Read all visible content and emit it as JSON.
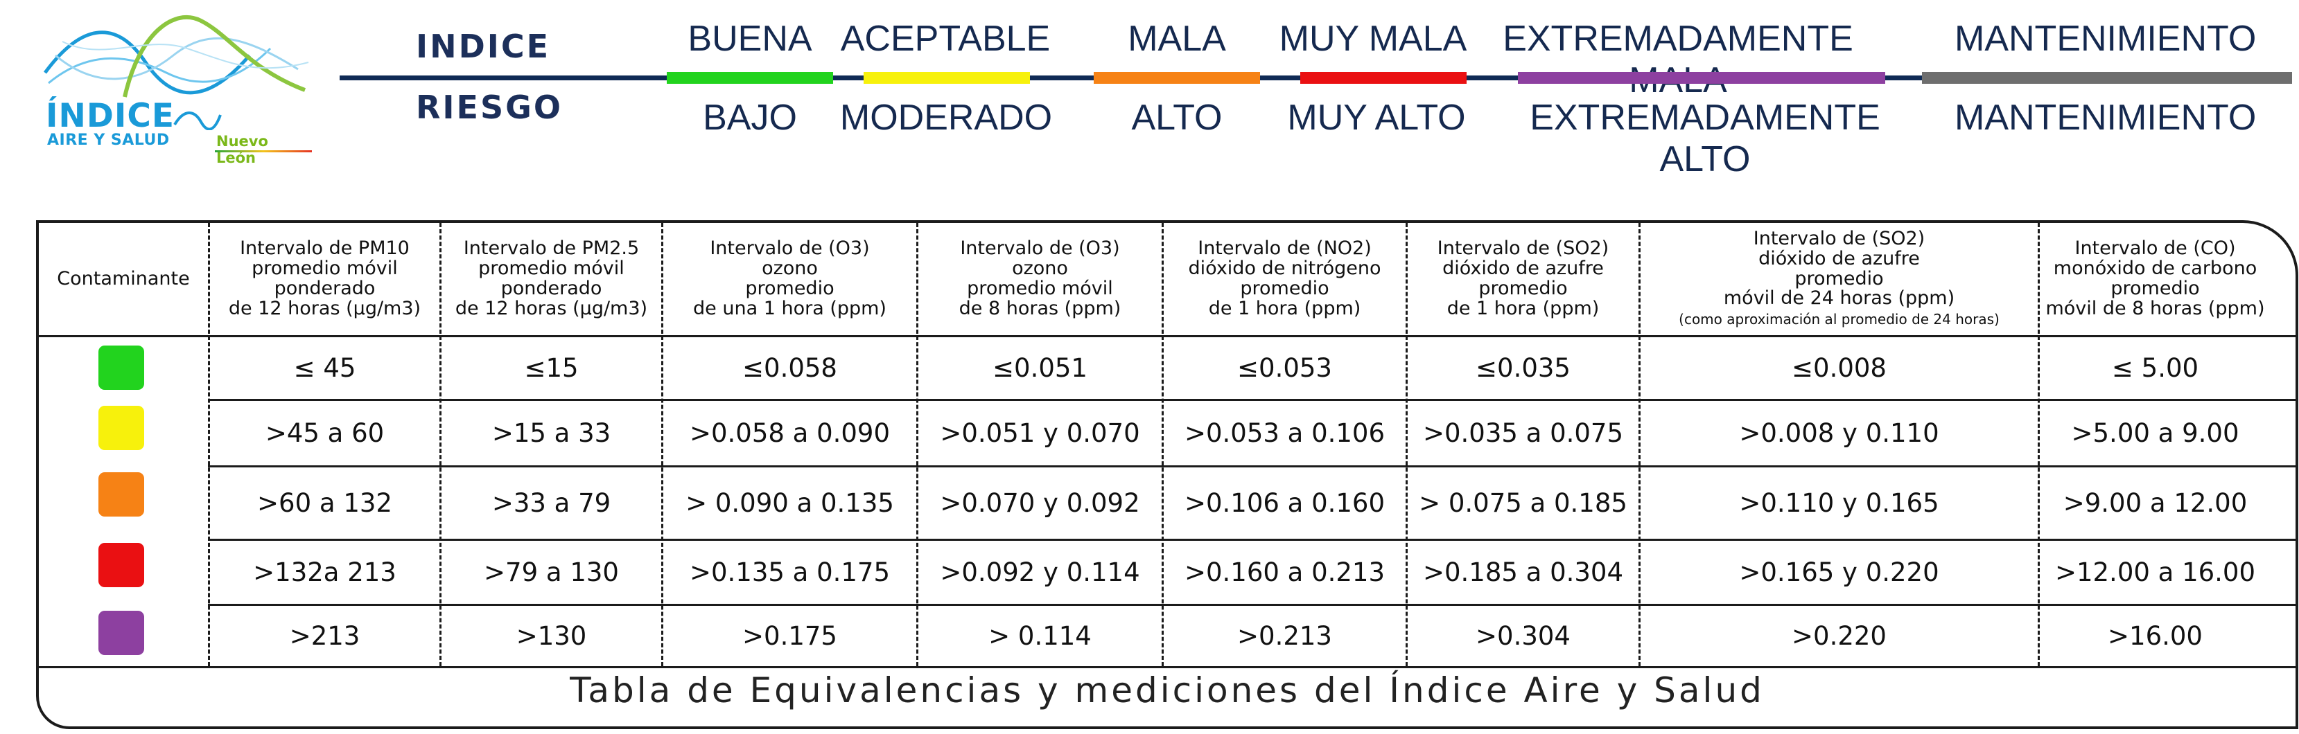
{
  "logo": {
    "title": "ÍNDICE",
    "subtitle": "AIRE Y SALUD",
    "region": "Nuevo León"
  },
  "legend": {
    "indice_label": "INDICE",
    "riesgo_label": "RIESGO",
    "categories": [
      {
        "indice": "BUENA",
        "riesgo": "BAJO",
        "color": "#22d31e"
      },
      {
        "indice": "ACEPTABLE",
        "riesgo": "MODERADO",
        "color": "#f7f10c"
      },
      {
        "indice": "MALA",
        "riesgo": "ALTO",
        "color": "#f68215"
      },
      {
        "indice": "MUY MALA",
        "riesgo": "MUY ALTO",
        "color": "#ea1012"
      },
      {
        "indice": "EXTREMADAMENTE MALA",
        "riesgo": "EXTREMADAMENTE ALTO",
        "color": "#8d40a0"
      },
      {
        "indice": "MANTENIMIENTO",
        "riesgo": "MANTENIMIENTO",
        "color": "#6e6e6e"
      }
    ]
  },
  "table": {
    "headers": [
      {
        "lines": [
          "Contaminante"
        ]
      },
      {
        "lines": [
          "Intervalo de PM10",
          "promedio móvil",
          "ponderado",
          "de 12 horas (µg/m3)"
        ]
      },
      {
        "lines": [
          "Intervalo de PM2.5",
          "promedio móvil",
          "ponderado",
          "de 12 horas (µg/m3)"
        ]
      },
      {
        "lines": [
          "Intervalo de (O3)",
          "ozono",
          "promedio",
          "de una 1 hora (ppm)"
        ]
      },
      {
        "lines": [
          "Intervalo de (O3)",
          "ozono",
          "promedio móvil",
          "de 8 horas (ppm)"
        ]
      },
      {
        "lines": [
          "Intervalo de (NO2)",
          "dióxido de nitrógeno",
          "promedio",
          "de 1 hora (ppm)"
        ]
      },
      {
        "lines": [
          "Intervalo de (SO2)",
          "dióxido de azufre",
          "promedio",
          "de 1 hora (ppm)"
        ]
      },
      {
        "lines": [
          "Intervalo de (SO2)",
          "dióxido de azufre",
          "promedio",
          "móvil de 24 horas (ppm)"
        ],
        "note": "(como aproximación al promedio de 24 horas)"
      },
      {
        "lines": [
          "Intervalo de (CO)",
          "monóxido de carbono",
          "promedio",
          "móvil de 8 horas (ppm)"
        ]
      }
    ],
    "rows": [
      {
        "color": "#22d31e",
        "values": [
          "≤ 45",
          "≤15",
          "≤0.058",
          "≤0.051",
          "≤0.053",
          "≤0.035",
          "≤0.008",
          "≤  5.00"
        ]
      },
      {
        "color": "#f7f10c",
        "values": [
          ">45 a 60",
          ">15 a 33",
          ">0.058 a 0.090",
          ">0.051 y 0.070",
          ">0.053 a 0.106",
          ">0.035 a 0.075",
          ">0.008 y 0.110",
          ">5.00 a 9.00"
        ]
      },
      {
        "color": "#f68215",
        "values": [
          ">60 a 132",
          ">33 a 79",
          "> 0.090 a 0.135",
          ">0.070 y 0.092",
          ">0.106 a 0.160",
          "> 0.075 a 0.185",
          ">0.110 y 0.165",
          ">9.00 a 12.00"
        ]
      },
      {
        "color": "#ea1012",
        "values": [
          ">132a 213",
          ">79 a 130",
          ">0.135 a 0.175",
          ">0.092 y 0.114",
          ">0.160 a 0.213",
          ">0.185 a 0.304",
          ">0.165 y 0.220",
          ">12.00 a 16.00"
        ]
      },
      {
        "color": "#8d40a0",
        "values": [
          ">213",
          ">130",
          ">0.175",
          "> 0.114",
          ">0.213",
          ">0.304",
          ">0.220",
          ">16.00"
        ]
      }
    ],
    "caption": "Tabla de Equivalencias y mediciones del Índice Aire y Salud"
  }
}
